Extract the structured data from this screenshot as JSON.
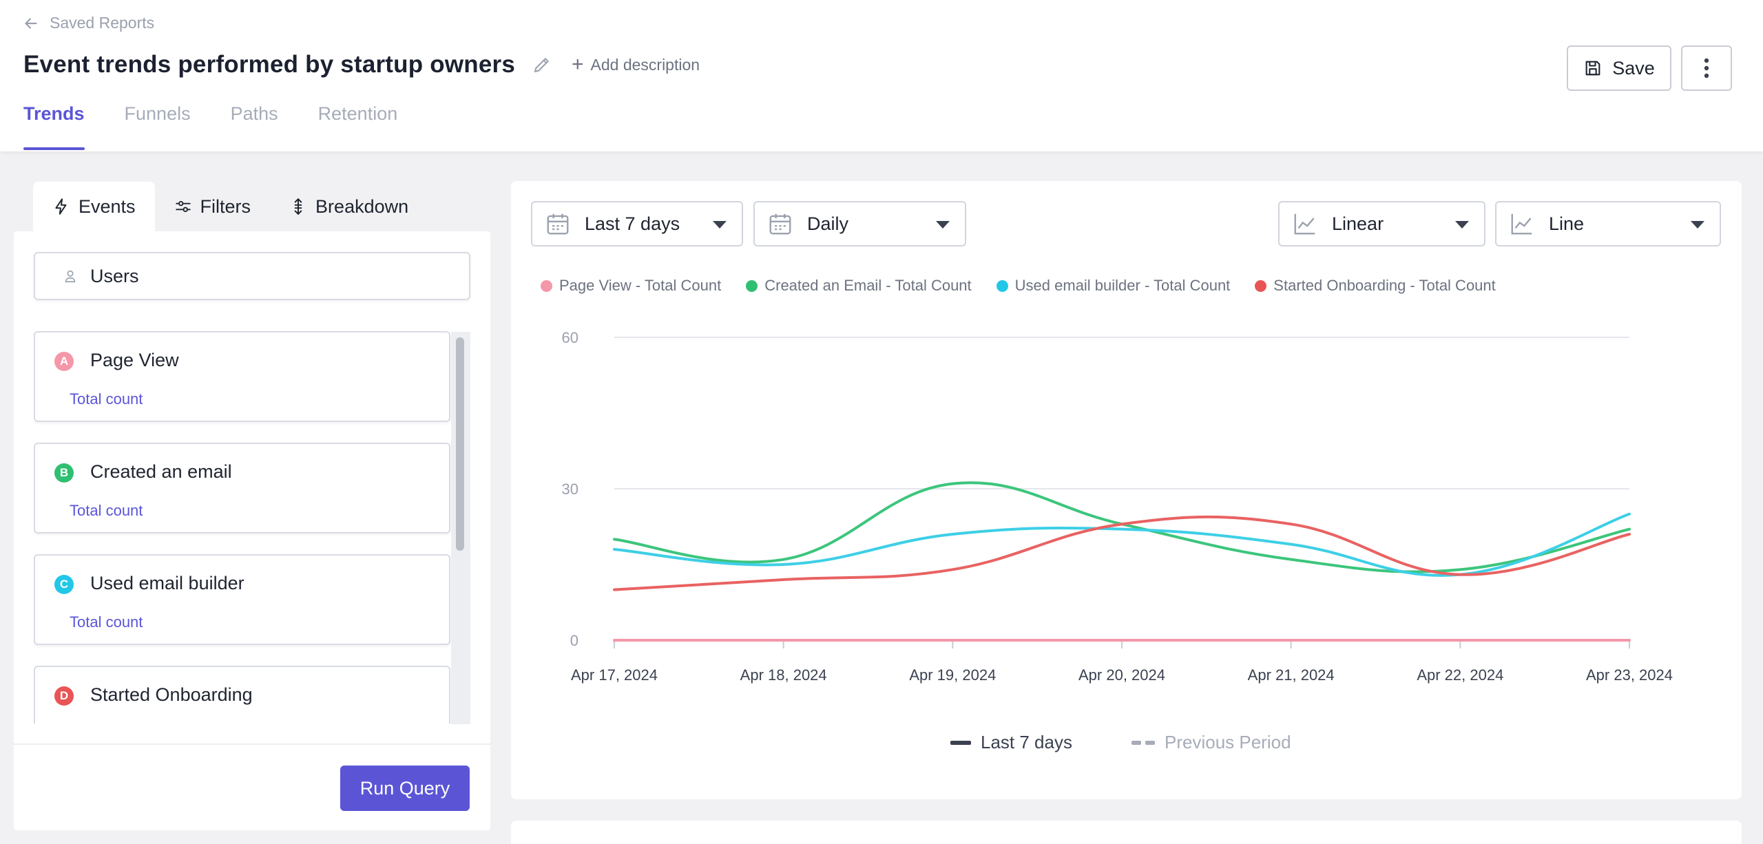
{
  "header": {
    "back_label": "Saved Reports",
    "title": "Event trends performed by startup owners",
    "add_description": "Add description",
    "save_label": "Save",
    "tabs": [
      {
        "label": "Trends",
        "active": true
      },
      {
        "label": "Funnels",
        "active": false
      },
      {
        "label": "Paths",
        "active": false
      },
      {
        "label": "Retention",
        "active": false
      }
    ]
  },
  "left_panel": {
    "tabs": [
      {
        "label": "Events",
        "icon": "bolt-icon",
        "active": true
      },
      {
        "label": "Filters",
        "icon": "sliders-icon",
        "active": false
      },
      {
        "label": "Breakdown",
        "icon": "breakdown-icon",
        "active": false
      }
    ],
    "users_label": "Users",
    "events": [
      {
        "badge": "A",
        "name": "Page View",
        "sub": "Total count",
        "color": "#f497a9"
      },
      {
        "badge": "B",
        "name": "Created an email",
        "sub": "Total count",
        "color": "#2fbf71"
      },
      {
        "badge": "C",
        "name": "Used email builder",
        "sub": "Total count",
        "color": "#22c7e8"
      },
      {
        "badge": "D",
        "name": "Started Onboarding",
        "sub": "",
        "color": "#e95454"
      }
    ],
    "run_query_label": "Run Query"
  },
  "controls": {
    "date_range": "Last 7 days",
    "interval": "Daily",
    "scale": "Linear",
    "chart_type": "Line"
  },
  "period_legend": {
    "current": "Last 7 days",
    "previous": "Previous Period"
  },
  "colors": {
    "accent": "#5b55d6",
    "page_view": "#f497a9",
    "created_email": "#3cc57c",
    "used_builder": "#3dcfe6",
    "started_onboarding": "#e96262"
  },
  "chart_data": {
    "type": "line",
    "x": [
      "Apr 17, 2024",
      "Apr 18, 2024",
      "Apr 19, 2024",
      "Apr 20, 2024",
      "Apr 21, 2024",
      "Apr 22, 2024",
      "Apr 23, 2024"
    ],
    "yticks": [
      "0",
      "30",
      "60"
    ],
    "ylim": [
      0,
      60
    ],
    "grid": true,
    "legend_position": "top",
    "series": [
      {
        "name": "Page View - Total Count",
        "color": "#f497a9",
        "values": [
          0,
          0,
          0,
          0,
          0,
          0,
          0
        ]
      },
      {
        "name": "Created an Email - Total Count",
        "color": "#3cc57c",
        "values": [
          20,
          16,
          31,
          23,
          16,
          14,
          22
        ]
      },
      {
        "name": "Used email builder - Total Count",
        "color": "#3dcfe6",
        "values": [
          18,
          15,
          21,
          22,
          19,
          13,
          25
        ]
      },
      {
        "name": "Started Onboarding - Total Count",
        "color": "#e96262",
        "values": [
          10,
          12,
          14,
          23,
          23,
          13,
          21
        ]
      }
    ]
  }
}
